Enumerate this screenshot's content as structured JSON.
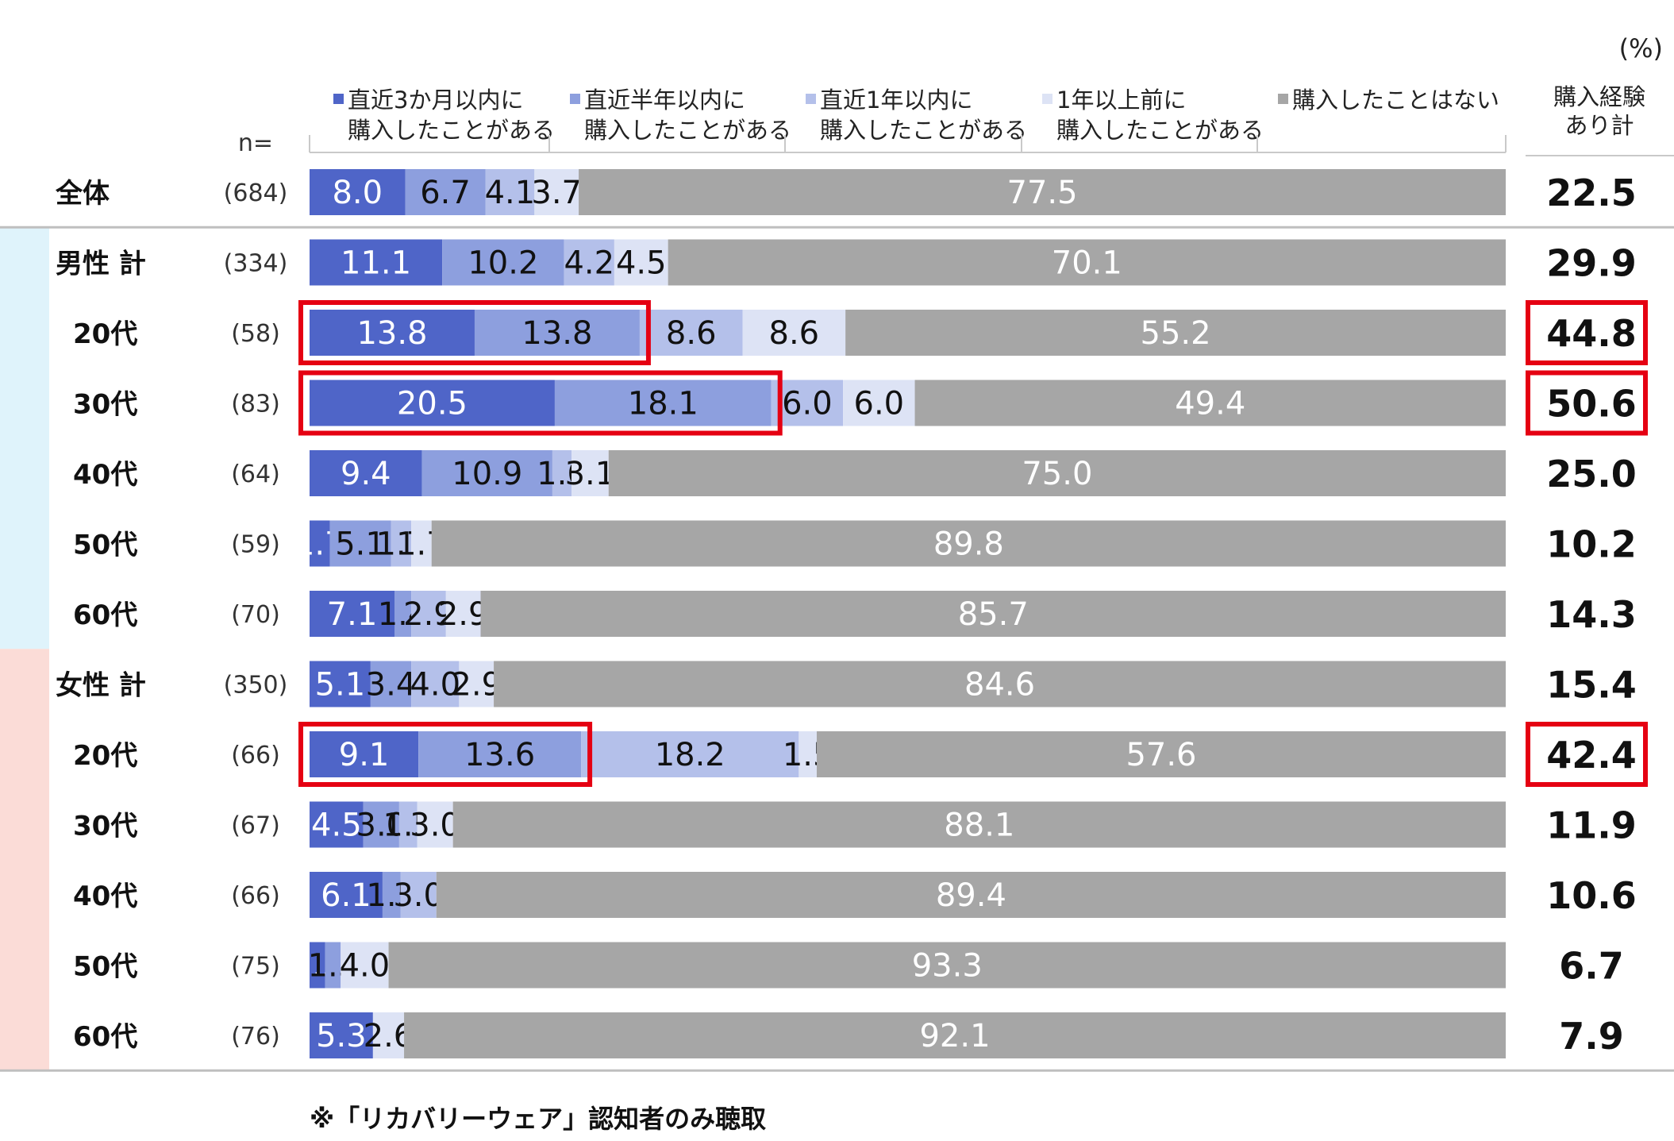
{
  "chart_data": {
    "type": "bar",
    "orientation": "horizontal-stacked-100",
    "unit": "(%)",
    "n_header": "n=",
    "total_header": [
      "購入経験",
      "あり計"
    ],
    "note": "※「リカバリーウェア」認知者のみ聴取",
    "colors": {
      "s1": "#4f65c8",
      "s2": "#8d9fde",
      "s3": "#b4c0ea",
      "s4": "#dde3f5",
      "s5": "#a6a6a6",
      "male_band": "#dff3fb",
      "female_band": "#fbdcd7",
      "highlight": "#e50012"
    },
    "series": [
      {
        "name": [
          "直近3か月以内に",
          "購入したことがある"
        ]
      },
      {
        "name": [
          "直近半年以内に",
          "購入したことがある"
        ]
      },
      {
        "name": [
          "直近1年以内に",
          "購入したことがある"
        ]
      },
      {
        "name": [
          "1年以上前に",
          "購入したことがある"
        ]
      },
      {
        "name": [
          "購入したことはない"
        ]
      }
    ],
    "rows": [
      {
        "label": "全体",
        "n": "(684)",
        "values": [
          8.0,
          6.7,
          4.1,
          3.7,
          77.5
        ],
        "labels": [
          "8.0",
          "6.7",
          "4.1",
          "3.7",
          "77.5"
        ],
        "total": "22.5",
        "group": "all"
      },
      {
        "label": "男性 計",
        "n": "(334)",
        "values": [
          11.1,
          10.2,
          4.2,
          4.5,
          70.1
        ],
        "labels": [
          "11.1",
          "10.2",
          "4.2",
          "4.5",
          "70.1"
        ],
        "total": "29.9",
        "group": "male"
      },
      {
        "label": "20代",
        "n": "(58)",
        "values": [
          13.8,
          13.8,
          8.6,
          8.6,
          55.2
        ],
        "labels": [
          "13.8",
          "13.8",
          "8.6",
          "8.6",
          "55.2"
        ],
        "total": "44.8",
        "group": "male",
        "highlight": true
      },
      {
        "label": "30代",
        "n": "(83)",
        "values": [
          20.5,
          18.1,
          6.0,
          6.0,
          49.4
        ],
        "labels": [
          "20.5",
          "18.1",
          "6.0",
          "6.0",
          "49.4"
        ],
        "total": "50.6",
        "group": "male",
        "highlight": true
      },
      {
        "label": "40代",
        "n": "(64)",
        "values": [
          9.4,
          10.9,
          1.6,
          3.1,
          75.0
        ],
        "labels": [
          "9.4",
          "10.9",
          "1.6",
          "3.1",
          "75.0"
        ],
        "total": "25.0",
        "group": "male"
      },
      {
        "label": "50代",
        "n": "(59)",
        "values": [
          1.7,
          5.1,
          1.7,
          1.7,
          89.8
        ],
        "labels": [
          "1.7",
          "5.1",
          "1.7",
          "1.7",
          "89.8"
        ],
        "total": "10.2",
        "group": "male"
      },
      {
        "label": "60代",
        "n": "(70)",
        "values": [
          7.1,
          1.4,
          2.9,
          2.9,
          85.7
        ],
        "labels": [
          "7.1",
          "1.4",
          "2.9",
          "2.9",
          "85.7"
        ],
        "total": "14.3",
        "group": "male"
      },
      {
        "label": "女性 計",
        "n": "(350)",
        "values": [
          5.1,
          3.4,
          4.0,
          2.9,
          84.6
        ],
        "labels": [
          "5.1",
          "3.4",
          "4.0",
          "2.9",
          "84.6"
        ],
        "total": "15.4",
        "group": "female"
      },
      {
        "label": "20代",
        "n": "(66)",
        "values": [
          9.1,
          13.6,
          18.2,
          1.5,
          57.6
        ],
        "labels": [
          "9.1",
          "13.6",
          "18.2",
          "1.5",
          "57.6"
        ],
        "total": "42.4",
        "group": "female",
        "highlight": true
      },
      {
        "label": "30代",
        "n": "(67)",
        "values": [
          4.5,
          3.0,
          1.5,
          3.0,
          88.1
        ],
        "labels": [
          "4.5",
          "3.0",
          "1.5",
          "3.0",
          "88.1"
        ],
        "total": "11.9",
        "group": "female"
      },
      {
        "label": "40代",
        "n": "(66)",
        "values": [
          6.1,
          1.5,
          3.0,
          0.0,
          89.4
        ],
        "labels": [
          "6.1",
          "1.5",
          "3.0",
          "",
          "89.4"
        ],
        "total": "10.6",
        "group": "female"
      },
      {
        "label": "50代",
        "n": "(75)",
        "values": [
          1.3,
          1.3,
          0.0,
          4.0,
          93.3
        ],
        "labels": [
          "1.3",
          "1.3",
          "",
          "4.0",
          "93.3"
        ],
        "total": "6.7",
        "group": "female"
      },
      {
        "label": "60代",
        "n": "(76)",
        "values": [
          5.3,
          0.0,
          0.0,
          2.6,
          92.1
        ],
        "labels": [
          "5.3",
          "",
          "",
          "2.6",
          "92.1"
        ],
        "total": "7.9",
        "group": "female"
      }
    ]
  }
}
